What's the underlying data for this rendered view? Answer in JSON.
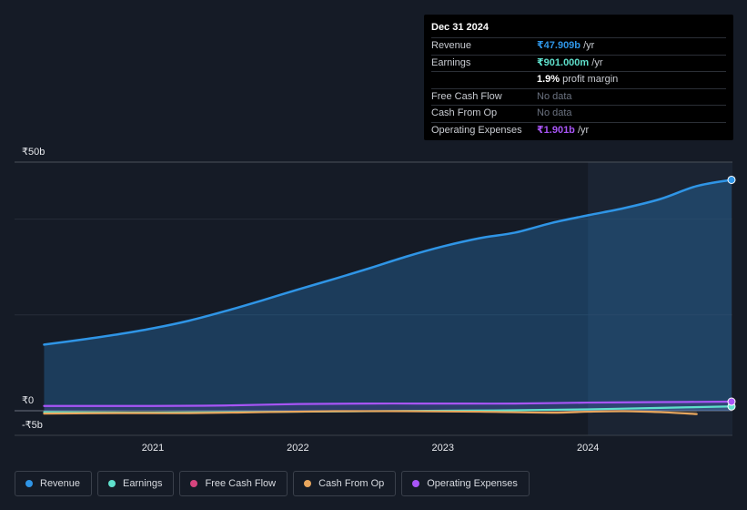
{
  "tooltip": {
    "date": "Dec 31 2024",
    "rows": [
      {
        "key": "Revenue",
        "value": "₹47.909b",
        "unit": " /yr",
        "color": "#2f95e6"
      },
      {
        "key": "Earnings",
        "value": "₹901.000m",
        "unit": " /yr",
        "color": "#5fe0cc"
      },
      {
        "key": "",
        "value": "1.9%",
        "unit": " profit margin",
        "color": "#ffffff"
      },
      {
        "key": "Free Cash Flow",
        "value": "No data",
        "unit": "",
        "color": "#6b7280"
      },
      {
        "key": "Cash From Op",
        "value": "No data",
        "unit": "",
        "color": "#6b7280"
      },
      {
        "key": "Operating Expenses",
        "value": "₹1.901b",
        "unit": " /yr",
        "color": "#a855f7"
      }
    ]
  },
  "legend": [
    {
      "label": "Revenue",
      "color": "#2f95e6"
    },
    {
      "label": "Earnings",
      "color": "#5fe0cc"
    },
    {
      "label": "Free Cash Flow",
      "color": "#d6457e"
    },
    {
      "label": "Cash From Op",
      "color": "#e8a65d"
    },
    {
      "label": "Operating Expenses",
      "color": "#a855f7"
    }
  ],
  "chart_data": {
    "type": "area",
    "y_labels": [
      "₹50b",
      "₹0",
      "-₹5b"
    ],
    "ylim": [
      -5,
      50
    ],
    "x_ticks": [
      "2021",
      "2022",
      "2023",
      "2024"
    ],
    "x_tick_values": [
      2021.0,
      2022.0,
      2023.0,
      2024.0
    ],
    "xlim": [
      2020.2,
      2025.0
    ],
    "highlight_start": 2024.0,
    "grid": true,
    "legend_position": "bottom",
    "series": [
      {
        "name": "Revenue",
        "color": "#2f95e6",
        "x": [
          2020.25,
          2020.5,
          2020.75,
          2021.0,
          2021.25,
          2021.5,
          2021.75,
          2022.0,
          2022.25,
          2022.5,
          2022.75,
          2023.0,
          2023.25,
          2023.5,
          2023.75,
          2024.0,
          2024.25,
          2024.5,
          2024.75,
          2025.0
        ],
        "y": [
          13.8,
          14.8,
          15.9,
          17.2,
          18.8,
          20.8,
          23.0,
          25.3,
          27.5,
          29.8,
          32.2,
          34.3,
          36.0,
          37.2,
          39.2,
          40.8,
          42.3,
          44.2,
          46.9,
          48.2
        ]
      },
      {
        "name": "Earnings",
        "color": "#5fe0cc",
        "x": [
          2020.25,
          2021.0,
          2022.0,
          2023.0,
          2023.5,
          2024.0,
          2024.5,
          2025.0
        ],
        "y": [
          -0.3,
          -0.4,
          -0.2,
          0.0,
          0.1,
          0.3,
          0.6,
          0.9
        ]
      },
      {
        "name": "Cash From Op",
        "color": "#e8a65d",
        "x": [
          2020.25,
          2020.75,
          2021.25,
          2021.75,
          2022.25,
          2022.75,
          2023.25,
          2023.75,
          2024.0,
          2024.25,
          2024.5,
          2024.75
        ],
        "y": [
          -0.6,
          -0.5,
          -0.5,
          -0.3,
          -0.1,
          -0.1,
          -0.2,
          -0.4,
          -0.2,
          -0.1,
          -0.3,
          -0.7
        ]
      },
      {
        "name": "Operating Expenses",
        "color": "#a855f7",
        "x": [
          2020.25,
          2021.0,
          2021.5,
          2022.0,
          2022.5,
          2023.0,
          2023.5,
          2024.0,
          2024.5,
          2025.0
        ],
        "y": [
          1.0,
          1.0,
          1.1,
          1.4,
          1.5,
          1.5,
          1.5,
          1.7,
          1.8,
          1.9
        ]
      }
    ]
  }
}
